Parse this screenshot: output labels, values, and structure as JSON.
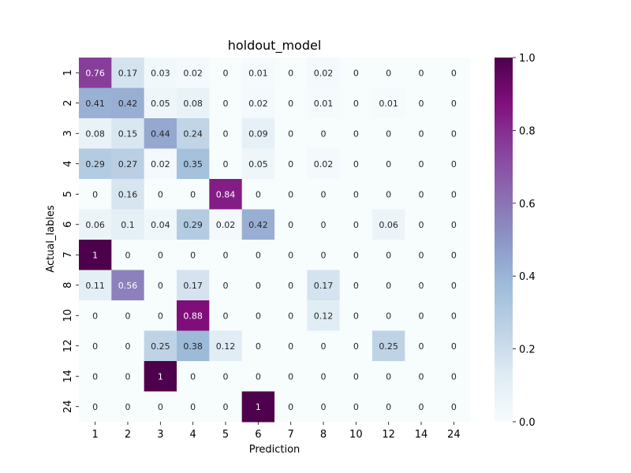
{
  "chart_data": {
    "type": "heatmap",
    "title": "holdout_model",
    "xlabel": "Prediction",
    "ylabel": "Actual_lables",
    "x_categories": [
      "1",
      "2",
      "3",
      "4",
      "5",
      "6",
      "7",
      "8",
      "10",
      "12",
      "14",
      "24"
    ],
    "y_categories": [
      "1",
      "2",
      "3",
      "4",
      "5",
      "6",
      "7",
      "8",
      "10",
      "12",
      "14",
      "24"
    ],
    "values": [
      [
        0.76,
        0.17,
        0.03,
        0.02,
        0,
        0.01,
        0,
        0.02,
        0,
        0,
        0,
        0
      ],
      [
        0.41,
        0.42,
        0.05,
        0.08,
        0,
        0.02,
        0,
        0.01,
        0,
        0.01,
        0,
        0
      ],
      [
        0.08,
        0.15,
        0.44,
        0.24,
        0,
        0.09,
        0,
        0,
        0,
        0,
        0,
        0
      ],
      [
        0.29,
        0.27,
        0.02,
        0.35,
        0,
        0.05,
        0,
        0.02,
        0,
        0,
        0,
        0
      ],
      [
        0,
        0.16,
        0,
        0,
        0.84,
        0,
        0,
        0,
        0,
        0,
        0,
        0
      ],
      [
        0.06,
        0.1,
        0.04,
        0.29,
        0.02,
        0.42,
        0,
        0,
        0,
        0.06,
        0,
        0
      ],
      [
        1,
        0,
        0,
        0,
        0,
        0,
        0,
        0,
        0,
        0,
        0,
        0
      ],
      [
        0.11,
        0.56,
        0,
        0.17,
        0,
        0,
        0,
        0.17,
        0,
        0,
        0,
        0
      ],
      [
        0,
        0,
        0,
        0.88,
        0,
        0,
        0,
        0.12,
        0,
        0,
        0,
        0
      ],
      [
        0,
        0,
        0.25,
        0.38,
        0.12,
        0,
        0,
        0,
        0,
        0.25,
        0,
        0
      ],
      [
        0,
        0,
        1,
        0,
        0,
        0,
        0,
        0,
        0,
        0,
        0,
        0
      ],
      [
        0,
        0,
        0,
        0,
        0,
        1,
        0,
        0,
        0,
        0,
        0,
        0
      ]
    ],
    "vmin": 0,
    "vmax": 1,
    "colormap": "BuPu",
    "colorbar_ticks": [
      "0.0",
      "0.2",
      "0.4",
      "0.6",
      "0.8",
      "1.0"
    ],
    "colorbar_tick_values": [
      0,
      0.2,
      0.4,
      0.6,
      0.8,
      1.0
    ],
    "annotations": true
  }
}
